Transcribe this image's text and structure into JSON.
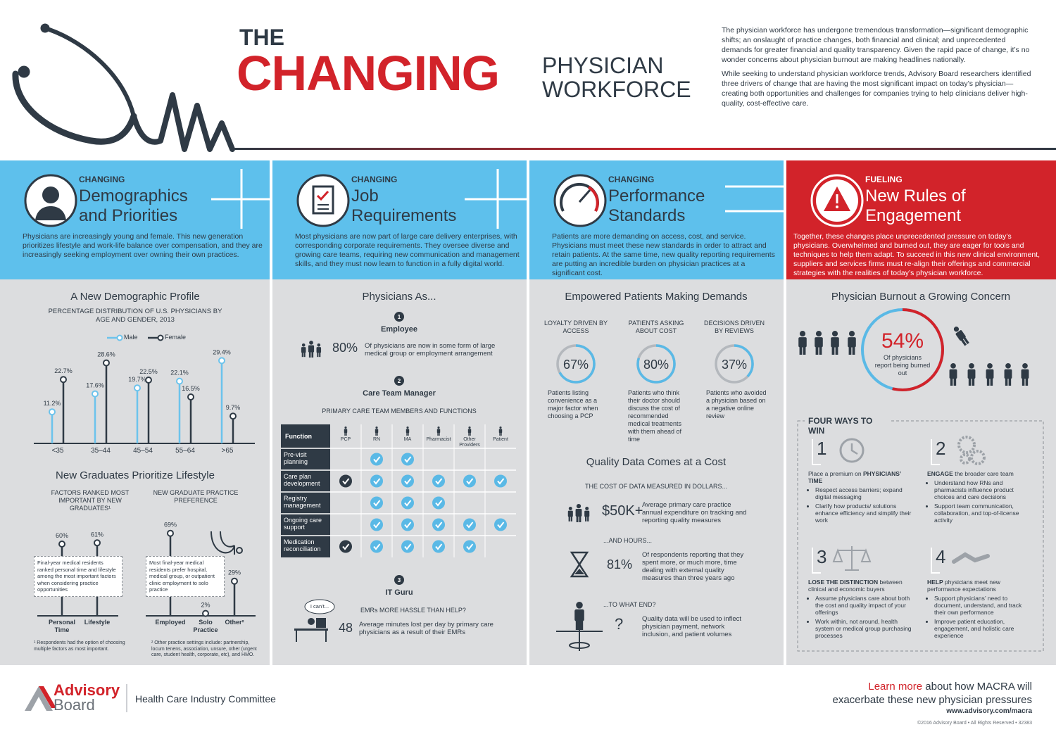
{
  "header": {
    "title_the": "THE",
    "title_changing": "CHANGING",
    "title_physician": "PHYSICIAN",
    "title_workforce": "WORKFORCE",
    "intro": [
      "The physician workforce has undergone tremendous transformation—significant demographic shifts; an onslaught of practice changes, both financial and clinical; and unprecedented demands for greater financial and quality transparency. Given the rapid pace of change, it’s no wonder concerns about physician burnout are making headlines nationally.",
      "While seeking to understand physician workforce trends, Advisory Board researchers identified three drivers of change that are having the most significant impact on today’s physician—creating both opportunities and challenges for companies trying to help clinicians deliver high-quality, cost-effective care."
    ]
  },
  "panels": [
    {
      "kicker": "CHANGING",
      "heading": "Demographics and Priorities",
      "body": "Physicians are increasingly young and female. This new generation prioritizes lifestyle and work-life balance over compensation, and they are increasingly seeking employment over owning their own practices."
    },
    {
      "kicker": "CHANGING",
      "heading": "Job Requirements",
      "body": "Most physicians are now part of large care delivery enterprises, with corresponding corporate requirements. They oversee diverse and growing care teams, requiring new communication and management skills, and they must now learn to function in a fully digital world."
    },
    {
      "kicker": "CHANGING",
      "heading": "Performance Standards",
      "body": "Patients are more demanding on access, cost, and service. Physicians must meet these new standards in order to attract and retain patients. At the same time, new quality reporting requirements are putting an incredible burden on physician practices at a significant cost."
    },
    {
      "kicker": "FUELING",
      "heading": "New Rules of Engagement",
      "body": "Together, these changes place unprecedented pressure on today’s physicians. Overwhelmed and burned out, they are eager for tools and techniques to help them adapt. To succeed in this new clinical environment, suppliers and services firms must re-align their offerings and commercial strategies with the realities of today’s physician workforce."
    }
  ],
  "demographics": {
    "type": "lollipop",
    "title": "A New Demographic Profile",
    "subtitle": "PERCENTAGE DISTRIBUTION OF U.S. PHYSICIANS BY AGE AND GENDER, 2013",
    "categories": [
      "<35",
      "35–44",
      "45–54",
      "55–64",
      ">65"
    ],
    "series": [
      {
        "name": "Male",
        "color": "#6cc3ec",
        "values": [
          11.2,
          17.6,
          19.7,
          22.1,
          29.4
        ],
        "value_labels": [
          "11.2%",
          "17.6%",
          "19.7%",
          "22.1%",
          "29.4%"
        ]
      },
      {
        "name": "Female",
        "color": "#2f3a45",
        "values": [
          22.7,
          28.6,
          22.5,
          16.5,
          9.7
        ],
        "value_labels": [
          "22.7%",
          "28.6%",
          "22.5%",
          "16.5%",
          "9.7%"
        ]
      }
    ]
  },
  "graduates": {
    "title": "New Graduates Prioritize Lifestyle",
    "color": "#2f3a45",
    "factors": {
      "subtitle": "FACTORS RANKED MOST IMPORTANT BY NEW GRADUATES¹",
      "categories": [
        "Personal Time",
        "Lifestyle"
      ],
      "values": [
        60,
        61
      ],
      "value_labels": [
        "60%",
        "61%"
      ],
      "note": "Final-year medical residents ranked personal time and lifestyle among the most important factors when considering practice opportunities",
      "footnote": "¹ Respondents had the option of choosing multiple factors as most important."
    },
    "preference": {
      "subtitle": "NEW GRADUATE PRACTICE PREFERENCE",
      "categories": [
        "Employed",
        "Solo Practice",
        "Other²"
      ],
      "values": [
        69,
        2,
        29
      ],
      "value_labels": [
        "69%",
        "2%",
        "29%"
      ],
      "note": "Most final-year medical residents prefer hospital, medical group, or outpatient clinic employment to solo practice",
      "footnote": "² Other practice settings include: partnership, locum tenens, association, unsure, other (urgent care, student health, corporate, etc), and HMO."
    }
  },
  "roles": {
    "title": "Physicians As...",
    "employee": {
      "number": "1",
      "title": "Employee",
      "stat": "80%",
      "text": "Of physicians are now in some form of large medical group or employment arrangement"
    },
    "manager": {
      "number": "2",
      "title": "Care Team Manager",
      "table_title": "PRIMARY CARE TEAM MEMBERS AND FUNCTIONS",
      "header": "Function",
      "columns": [
        "PCP",
        "RN",
        "MA",
        "Pharmacist",
        "Other Providers",
        "Patient"
      ],
      "check_colors": [
        "#2f3a45",
        "#5ab9e6",
        "#5ab9e6",
        "#5ab9e6",
        "#5ab9e6",
        "#5ab9e6"
      ],
      "rows": [
        {
          "label": "Pre-visit planning",
          "checks": [
            false,
            true,
            true,
            false,
            false,
            false
          ]
        },
        {
          "label": "Care plan development",
          "checks": [
            true,
            true,
            true,
            true,
            true,
            true
          ]
        },
        {
          "label": "Registry management",
          "checks": [
            false,
            true,
            true,
            true,
            false,
            false
          ]
        },
        {
          "label": "Ongoing care support",
          "checks": [
            false,
            true,
            true,
            true,
            true,
            true
          ]
        },
        {
          "label": "Medication reconciliation",
          "checks": [
            true,
            true,
            true,
            true,
            true,
            false
          ]
        }
      ]
    },
    "guru": {
      "number": "3",
      "title": "IT Guru",
      "bubble": "I can’t...",
      "question": "EMRs MORE HASSLE THAN HELP?",
      "stat": "48",
      "text": "Average minutes lost per day by primary care physicians as a result of their EMRs"
    }
  },
  "patients": {
    "type": "donut",
    "title": "Empowered Patients Making Demands",
    "color": "#5ab9e6",
    "track_color": "#b4b8bd",
    "items": [
      {
        "label": "LOYALTY DRIVEN BY ACCESS",
        "value": 67,
        "value_label": "67%",
        "text": "Patients listing convenience as a major factor when choosing a PCP"
      },
      {
        "label": "PATIENTS ASKING ABOUT COST",
        "value": 80,
        "value_label": "80%",
        "text": "Patients who think their doctor should discuss the cost of recommended medical treatments with them ahead of time"
      },
      {
        "label": "DECISIONS DRIVEN BY REVIEWS",
        "value": 37,
        "value_label": "37%",
        "text": "Patients who avoided a physician based on a negative online review"
      }
    ]
  },
  "quality": {
    "title": "Quality Data Comes at a Cost",
    "subtitle": "THE COST OF DATA MEASURED IN DOLLARS...",
    "items": [
      {
        "stat": "$50K+",
        "text": "Average primary care practice annual expenditure on tracking and reporting quality measures"
      },
      {
        "lead": "...AND HOURS...",
        "stat": "81%",
        "text": "Of respondents reporting that they spent more, or much more, time dealing with external quality measures than three years ago"
      },
      {
        "lead": "...TO WHAT END?",
        "stat": "?",
        "text": "Quality data will be used to inflect physician payment, network inclusion, and patient volumes"
      }
    ]
  },
  "burnout": {
    "type": "donut",
    "title": "Physician Burnout a Growing Concern",
    "value": 54,
    "value_label": "54%",
    "text": "Of physicians report being burned out",
    "color": "#d2232a",
    "track_color": "#5ab9e6"
  },
  "ways": {
    "title": "FOUR WAYS TO WIN",
    "items": [
      {
        "number": "1",
        "heading": [
          "Place a premium on",
          "PHYSICIANS’ TIME"
        ],
        "bold": [
          false,
          true
        ],
        "bullets": [
          "Respect access barriers; expand digital messaging",
          "Clarify how products/ solutions enhance efficiency and simplify their work"
        ]
      },
      {
        "number": "2",
        "heading": [
          "ENGAGE",
          "the broader care team"
        ],
        "bold": [
          true,
          false
        ],
        "bullets": [
          "Understand how RNs and pharmacists influence product choices and care decisions",
          "Support team communication, collaboration, and top-of-license activity"
        ]
      },
      {
        "number": "3",
        "heading": [
          "LOSE THE DISTINCTION",
          "between clinical and economic buyers"
        ],
        "bold": [
          true,
          false
        ],
        "bullets": [
          "Assume physicians care about both the cost and quality impact of your offerings",
          "Work within, not around, health system or medical group purchasing processes"
        ]
      },
      {
        "number": "4",
        "heading": [
          "HELP",
          "physicians meet new performance expectations"
        ],
        "bold": [
          true,
          false
        ],
        "bullets": [
          "Support physicians’ need to document, understand, and track their own performance",
          "Improve patient education, engagement, and holistic care experience"
        ]
      }
    ]
  },
  "footer": {
    "logo_top": "Advisory",
    "logo_bottom": "Board",
    "committee": "Health Care Industry Committee",
    "cta_link": "Learn more",
    "cta_text": "about how MACRA will exacerbate these new physician pressures",
    "url": "www.advisory.com/macra",
    "copyright": "©2016 Advisory Board • All Rights Reserved • 32383"
  }
}
